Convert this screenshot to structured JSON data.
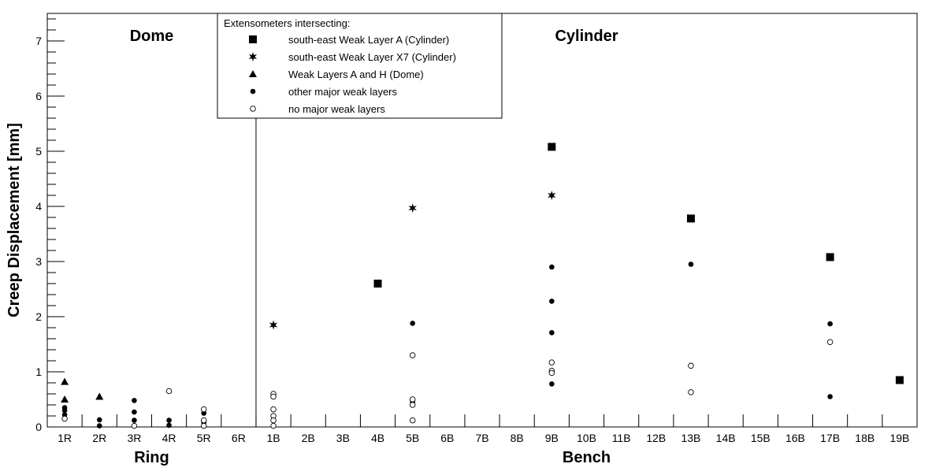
{
  "chart_data": {
    "type": "scatter",
    "ylabel": "Creep Displacement [mm]",
    "ylim": [
      0,
      7.5
    ],
    "yticks": [
      0,
      1,
      2,
      3,
      4,
      5,
      6,
      7
    ],
    "categories": [
      "1R",
      "2R",
      "3R",
      "4R",
      "5R",
      "6R",
      "1B",
      "2B",
      "3B",
      "4B",
      "5B",
      "6B",
      "7B",
      "8B",
      "9B",
      "10B",
      "11B",
      "12B",
      "13B",
      "14B",
      "15B",
      "16B",
      "17B",
      "18B",
      "19B"
    ],
    "regions": [
      {
        "name": "Dome",
        "axis_label": "Ring",
        "categories": [
          "1R",
          "2R",
          "3R",
          "4R",
          "5R",
          "6R"
        ]
      },
      {
        "name": "Cylinder",
        "axis_label": "Bench",
        "categories": [
          "1B",
          "2B",
          "3B",
          "4B",
          "5B",
          "6B",
          "7B",
          "8B",
          "9B",
          "10B",
          "11B",
          "12B",
          "13B",
          "14B",
          "15B",
          "16B",
          "17B",
          "18B",
          "19B"
        ]
      }
    ],
    "legend": {
      "title": "Extensometers intersecting:",
      "position": "top-center"
    },
    "series": [
      {
        "name": "south-east Weak Layer A (Cylinder)",
        "marker": "square",
        "points": [
          {
            "x": "4B",
            "y": 2.6
          },
          {
            "x": "9B",
            "y": 5.08
          },
          {
            "x": "13B",
            "y": 3.78
          },
          {
            "x": "17B",
            "y": 3.08
          },
          {
            "x": "19B",
            "y": 0.85
          }
        ]
      },
      {
        "name": "south-east Weak Layer X7 (Cylinder)",
        "marker": "star",
        "points": [
          {
            "x": "1B",
            "y": 1.85
          },
          {
            "x": "5B",
            "y": 3.97
          },
          {
            "x": "9B",
            "y": 4.2
          }
        ]
      },
      {
        "name": "Weak Layers A and H (Dome)",
        "marker": "triangle",
        "points": [
          {
            "x": "1R",
            "y": 0.82
          },
          {
            "x": "1R",
            "y": 0.5
          },
          {
            "x": "2R",
            "y": 0.55
          }
        ]
      },
      {
        "name": "other major weak layers",
        "marker": "dot",
        "points": [
          {
            "x": "1R",
            "y": 0.35
          },
          {
            "x": "1R",
            "y": 0.3
          },
          {
            "x": "1R",
            "y": 0.22
          },
          {
            "x": "2R",
            "y": 0.13
          },
          {
            "x": "2R",
            "y": 0.02
          },
          {
            "x": "3R",
            "y": 0.48
          },
          {
            "x": "3R",
            "y": 0.27
          },
          {
            "x": "3R",
            "y": 0.12
          },
          {
            "x": "4R",
            "y": 0.12
          },
          {
            "x": "4R",
            "y": 0.03
          },
          {
            "x": "5R",
            "y": 0.25
          },
          {
            "x": "5R",
            "y": 0.08
          },
          {
            "x": "5B",
            "y": 1.88
          },
          {
            "x": "5B",
            "y": 0.45
          },
          {
            "x": "9B",
            "y": 2.9
          },
          {
            "x": "9B",
            "y": 2.28
          },
          {
            "x": "9B",
            "y": 1.71
          },
          {
            "x": "9B",
            "y": 0.78
          },
          {
            "x": "13B",
            "y": 2.95
          },
          {
            "x": "17B",
            "y": 1.87
          },
          {
            "x": "17B",
            "y": 0.55
          }
        ]
      },
      {
        "name": "no major weak layers",
        "marker": "circle",
        "points": [
          {
            "x": "1R",
            "y": 0.15
          },
          {
            "x": "3R",
            "y": 0.02
          },
          {
            "x": "4R",
            "y": 0.65
          },
          {
            "x": "5R",
            "y": 0.32
          },
          {
            "x": "5R",
            "y": 0.12
          },
          {
            "x": "5R",
            "y": 0.02
          },
          {
            "x": "1B",
            "y": 0.6
          },
          {
            "x": "1B",
            "y": 0.55
          },
          {
            "x": "1B",
            "y": 0.32
          },
          {
            "x": "1B",
            "y": 0.2
          },
          {
            "x": "1B",
            "y": 0.12
          },
          {
            "x": "1B",
            "y": 0.02
          },
          {
            "x": "5B",
            "y": 1.3
          },
          {
            "x": "5B",
            "y": 0.5
          },
          {
            "x": "5B",
            "y": 0.4
          },
          {
            "x": "5B",
            "y": 0.12
          },
          {
            "x": "9B",
            "y": 1.17
          },
          {
            "x": "9B",
            "y": 1.02
          },
          {
            "x": "9B",
            "y": 0.98
          },
          {
            "x": "13B",
            "y": 1.11
          },
          {
            "x": "13B",
            "y": 0.63
          },
          {
            "x": "17B",
            "y": 1.54
          }
        ]
      }
    ]
  }
}
